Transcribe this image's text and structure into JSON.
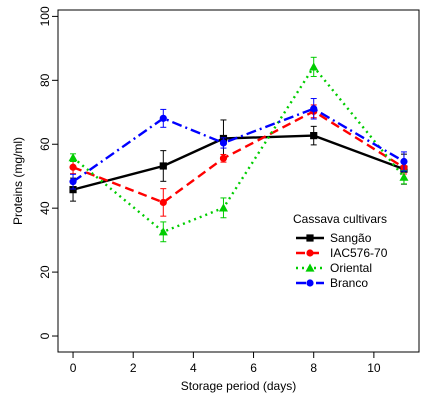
{
  "chart_data": {
    "type": "line",
    "xlabel": "Storage period (days)",
    "ylabel": "Proteins (mg/ml)",
    "xlim": [
      -0.5,
      11.5
    ],
    "ylim": [
      -5,
      102
    ],
    "xticks": [
      0,
      2,
      4,
      6,
      8,
      10
    ],
    "yticks": [
      0,
      20,
      40,
      60,
      80,
      100
    ],
    "x": [
      0,
      3,
      5,
      8,
      11
    ],
    "legend_title": "Cassava cultivars",
    "legend_position": "lower-right",
    "series": [
      {
        "name": "Sangão",
        "color": "#000000",
        "dash": "solid",
        "marker": "square",
        "values": [
          45.8,
          53.2,
          61.8,
          62.7,
          52.2
        ],
        "errors": [
          3.6,
          4.8,
          5.8,
          2.9,
          4.7
        ]
      },
      {
        "name": "IAC576-70",
        "color": "#ff0000",
        "dash": "dashed",
        "marker": "circle",
        "values": [
          52.8,
          41.8,
          55.6,
          70.3,
          52.7
        ],
        "errors": [
          2.0,
          4.3,
          1.2,
          2.0,
          2.0
        ]
      },
      {
        "name": "Oriental",
        "color": "#00cd00",
        "dash": "dotted",
        "marker": "triangle",
        "values": [
          55.8,
          32.6,
          40.1,
          84.2,
          49.7
        ],
        "errors": [
          1.2,
          3.1,
          3.1,
          3.0,
          2.1
        ]
      },
      {
        "name": "Branco",
        "color": "#0000ff",
        "dash": "dashdot",
        "marker": "circle",
        "values": [
          48.3,
          68.1,
          60.4,
          71.1,
          54.6
        ],
        "errors": [
          2.3,
          2.8,
          1.6,
          3.2,
          3.0
        ]
      }
    ]
  }
}
